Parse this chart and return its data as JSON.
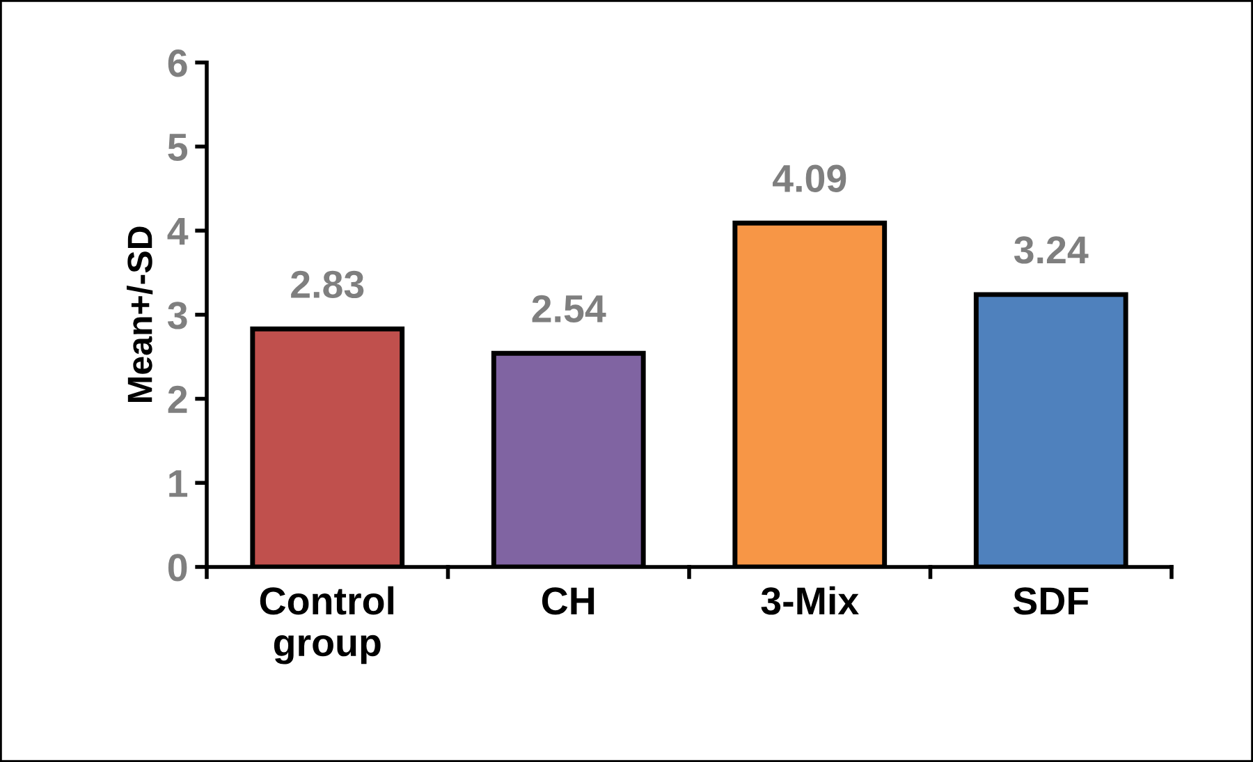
{
  "chart_data": {
    "type": "bar",
    "ylabel": "Mean+/-SD",
    "categories": [
      "Control\ngroup",
      "CH",
      "3-Mix",
      "SDF"
    ],
    "values": [
      2.83,
      2.54,
      4.09,
      3.24
    ],
    "colors": [
      "#c0504d",
      "#8064a2",
      "#f79646",
      "#4f81bd"
    ],
    "ylim": [
      0,
      6
    ],
    "yticks": [
      0,
      1,
      2,
      3,
      4,
      5,
      6
    ],
    "data_labels": true,
    "grid": false,
    "legend": false
  }
}
